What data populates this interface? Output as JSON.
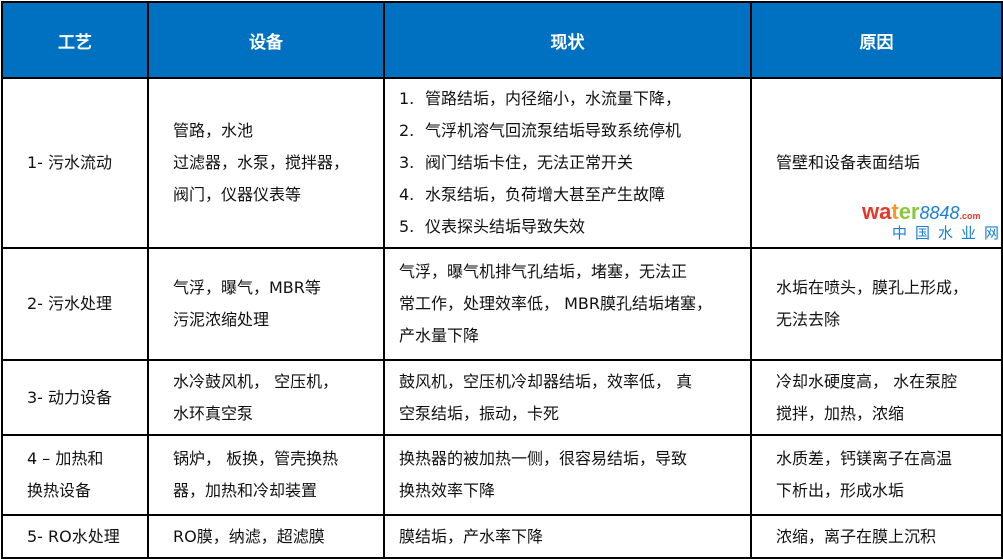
{
  "header": [
    "工艺",
    "设备",
    "现状",
    "原因"
  ],
  "colors": {
    "header_bg": "#0070C0",
    "header_text": "#ffffff",
    "border": "#000000"
  },
  "rows": [
    {
      "process": [
        "1- 污水流动"
      ],
      "equipment": [
        "管路，水池",
        "过滤器，水泵，搅拌器，",
        "阀门，仪器仪表等"
      ],
      "status": [
        "管路结垢，内径缩小，水流量下降，",
        "气浮机溶气回流泵结垢导致系统停机",
        "阀门结垢卡住，无法正常开关",
        "水泵结垢，负荷增大甚至产生故障",
        "仪表探头结垢导致失效"
      ],
      "status_numbered": true,
      "reason": [
        "管壁和设备表面结垢"
      ]
    },
    {
      "process": [
        "2- 污水处理"
      ],
      "equipment": [
        "气浮，曝气，MBR等",
        "污泥浓缩处理"
      ],
      "status": [
        "气浮，曝气机排气孔结垢，堵塞，无法正",
        "常工作，处理效率低， MBR膜孔结垢堵塞，",
        "产水量下降"
      ],
      "status_numbered": false,
      "reason": [
        "水垢在喷头，膜孔上形成，",
        "无法去除"
      ]
    },
    {
      "process": [
        "3- 动力设备"
      ],
      "equipment": [
        "水冷鼓风机， 空压机，",
        "水环真空泵"
      ],
      "status": [
        "鼓风机，空压机冷却器结垢，效率低， 真",
        "空泵结垢，振动，卡死"
      ],
      "status_numbered": false,
      "reason": [
        "冷却水硬度高， 水在泵腔",
        "搅拌，加热，浓缩"
      ]
    },
    {
      "process": [
        "4 – 加热和",
        "换热设备"
      ],
      "equipment": [
        "锅炉， 板换，管壳换热",
        "器，加热和冷却装置"
      ],
      "status": [
        "换热器的被加热一侧，很容易结垢，导致",
        "换热效率下降"
      ],
      "status_numbered": false,
      "reason": [
        "水质差，钙镁离子在高温",
        "下析出，形成水垢"
      ]
    },
    {
      "process": [
        "5- RO水处理"
      ],
      "equipment": [
        "RO膜，纳滤，超滤膜"
      ],
      "status": [
        "膜结垢，产水率下降"
      ],
      "status_numbered": false,
      "reason": [
        "浓缩，离子在膜上沉积"
      ]
    }
  ],
  "watermark": {
    "logo": "water8848",
    "domain": ".com",
    "sub": "中国水业网"
  }
}
